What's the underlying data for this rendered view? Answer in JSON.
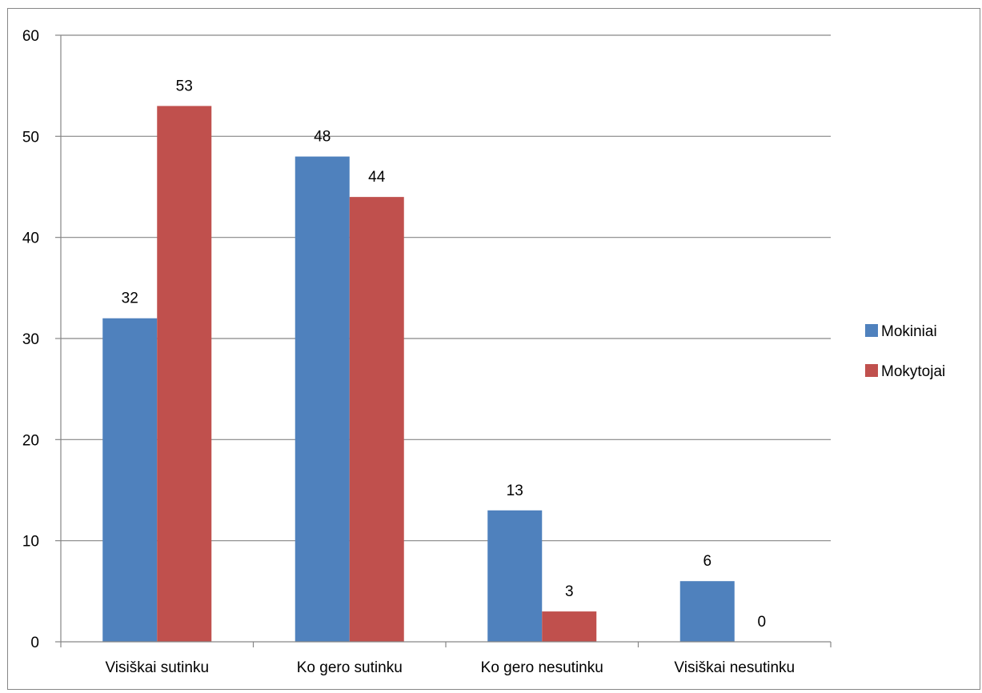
{
  "chart_data": {
    "type": "bar",
    "title": "",
    "xlabel": "",
    "ylabel": "",
    "categories": [
      "Visiškai sutinku",
      "Ko gero sutinku",
      "Ko gero nesutinku",
      "Visiškai nesutinku"
    ],
    "series": [
      {
        "name": "Mokiniai",
        "color": "#4f81bd",
        "values": [
          32,
          48,
          13,
          6
        ]
      },
      {
        "name": "Mokytojai",
        "color": "#c0504d",
        "values": [
          53,
          44,
          3,
          0
        ]
      }
    ],
    "ylim": [
      0,
      60
    ],
    "yticks": [
      0,
      10,
      20,
      30,
      40,
      50,
      60
    ],
    "grid": true,
    "legend_position": "right",
    "data_labels": true
  }
}
